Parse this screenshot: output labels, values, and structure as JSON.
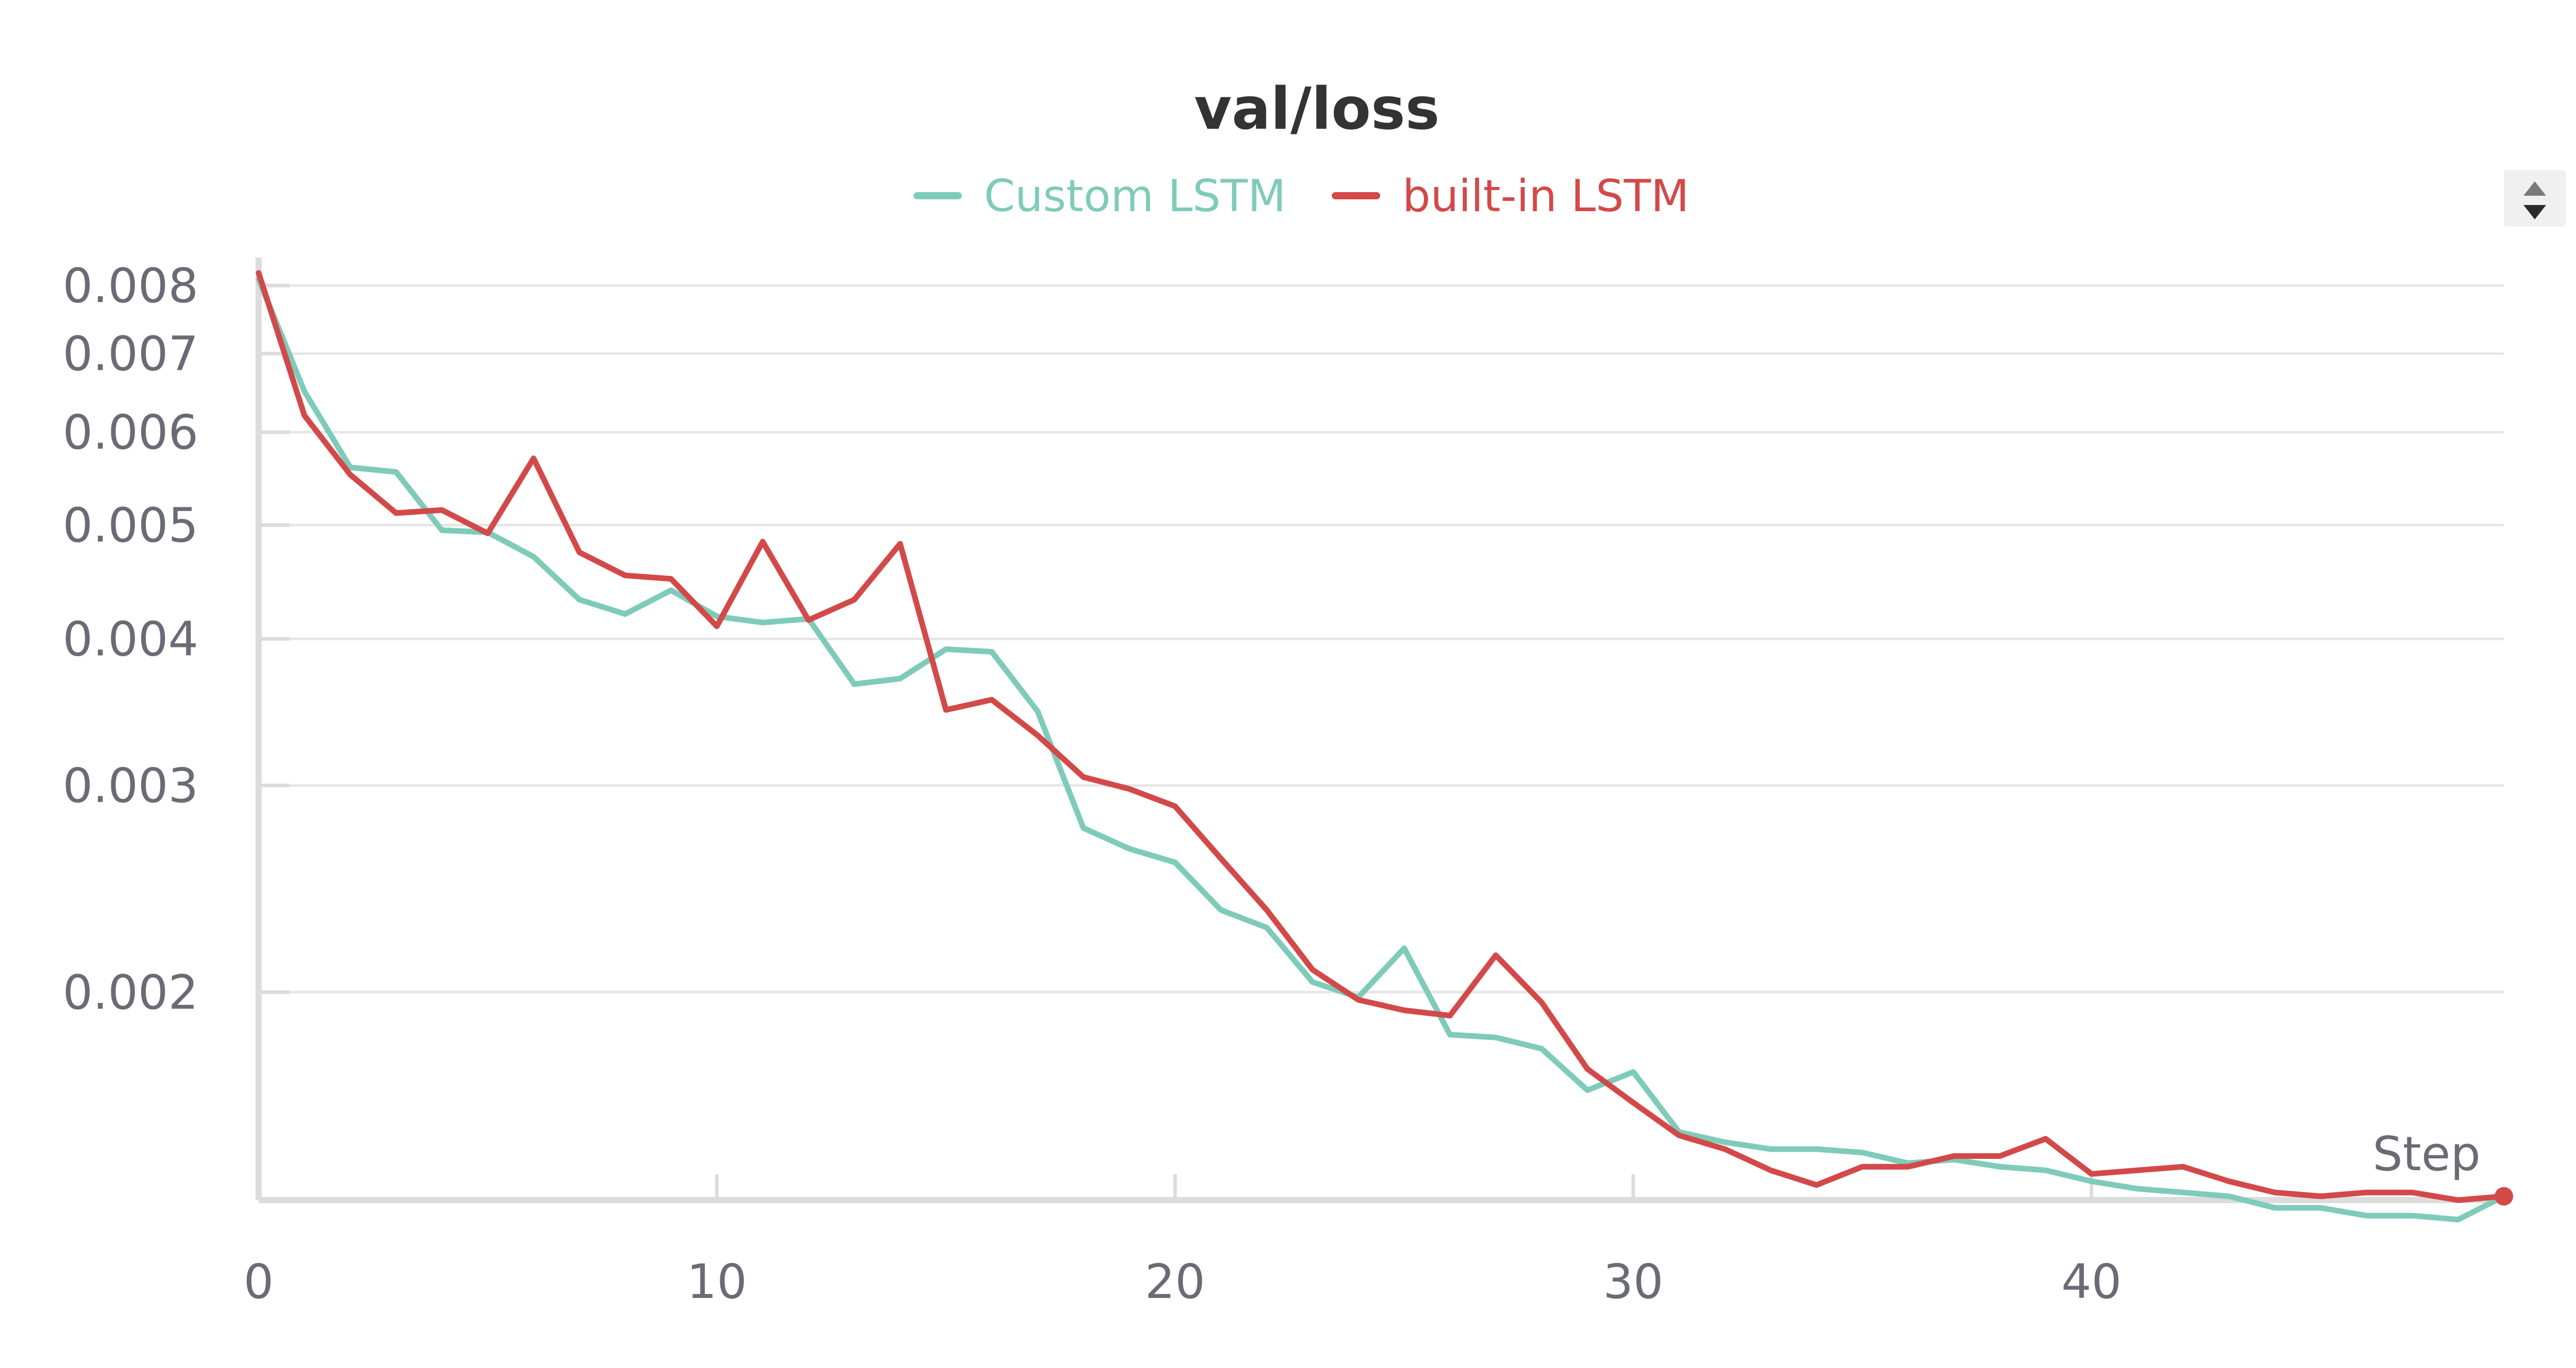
{
  "chart_data": {
    "type": "line",
    "title": "val/loss",
    "xlabel": "Step",
    "ylabel": "",
    "xlim": [
      0,
      49
    ],
    "ylim": [
      0.00133,
      0.0082
    ],
    "yscale": "log",
    "grid": true,
    "legend_position": "top-center",
    "x_ticks": [
      0,
      10,
      20,
      30,
      40
    ],
    "y_ticks": [
      0.002,
      0.003,
      0.004,
      0.005,
      0.006,
      0.007,
      0.008
    ],
    "x_tick_labels": [
      "0",
      "10",
      "20",
      "30",
      "40"
    ],
    "y_tick_labels": [
      "0.002",
      "0.003",
      "0.004",
      "0.005",
      "0.006",
      "0.007",
      "0.008"
    ],
    "x": [
      0,
      1,
      2,
      3,
      4,
      5,
      6,
      7,
      8,
      9,
      10,
      11,
      12,
      13,
      14,
      15,
      16,
      17,
      18,
      19,
      20,
      21,
      22,
      23,
      24,
      25,
      26,
      27,
      28,
      29,
      30,
      31,
      32,
      33,
      34,
      35,
      36,
      37,
      38,
      39,
      40,
      41,
      42,
      43,
      44,
      45,
      46,
      47,
      48,
      49
    ],
    "series": [
      {
        "name": "Custom LSTM",
        "color": "#7fcbb9",
        "values": [
          0.0081,
          0.0065,
          0.0056,
          0.00555,
          0.00495,
          0.00493,
          0.0047,
          0.00432,
          0.0042,
          0.0044,
          0.00418,
          0.00413,
          0.00416,
          0.00366,
          0.0037,
          0.00392,
          0.0039,
          0.00347,
          0.00276,
          0.00265,
          0.00258,
          0.00235,
          0.00227,
          0.00204,
          0.00198,
          0.00218,
          0.00184,
          0.00183,
          0.00179,
          0.00165,
          0.00171,
          0.00152,
          0.00149,
          0.00147,
          0.00147,
          0.00146,
          0.00143,
          0.00144,
          0.00142,
          0.00141,
          0.00138,
          0.00136,
          0.00135,
          0.00134,
          0.00131,
          0.00131,
          0.00129,
          0.00129,
          0.00128,
          0.00134
        ]
      },
      {
        "name": "built-in LSTM",
        "color": "#d34949",
        "values": [
          0.0082,
          0.0062,
          0.00552,
          0.00512,
          0.00515,
          0.00492,
          0.0057,
          0.00474,
          0.00453,
          0.0045,
          0.0041,
          0.00484,
          0.00415,
          0.00432,
          0.00482,
          0.00348,
          0.00355,
          0.00331,
          0.00305,
          0.00298,
          0.00288,
          0.0026,
          0.00235,
          0.00209,
          0.00197,
          0.00193,
          0.00191,
          0.00215,
          0.00196,
          0.00172,
          0.00161,
          0.00151,
          0.00147,
          0.00141,
          0.00137,
          0.00142,
          0.00142,
          0.00145,
          0.00145,
          0.0015,
          0.0014,
          0.00141,
          0.00142,
          0.00138,
          0.00135,
          0.00134,
          0.00135,
          0.00135,
          0.00133,
          0.00134
        ]
      }
    ]
  },
  "controls": {
    "scroll_icon": "sort-arrows-icon"
  }
}
